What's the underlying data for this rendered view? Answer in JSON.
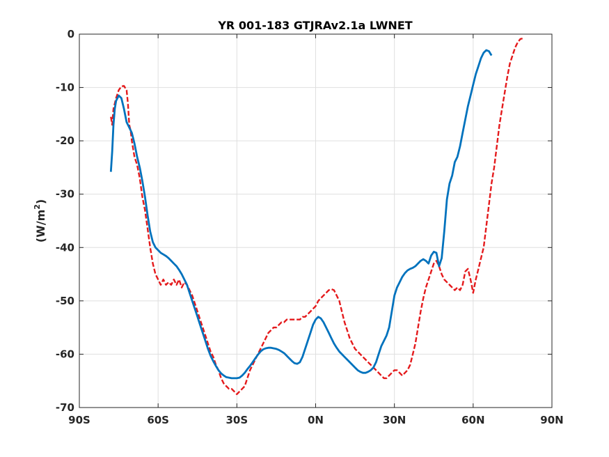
{
  "chart_data": {
    "type": "line",
    "title": "YR 001-183 GTJRAv2.1a LWNET",
    "xlabel": "",
    "ylabel": "(W/m",
    "ylabel_superscript": "2",
    "ylabel_close": ")",
    "xlim": [
      -90,
      90
    ],
    "ylim": [
      -70,
      0
    ],
    "grid": true,
    "legend": "none",
    "x_ticks": [
      {
        "value": -90,
        "label": "90S"
      },
      {
        "value": -60,
        "label": "60S"
      },
      {
        "value": -30,
        "label": "30S"
      },
      {
        "value": 0,
        "label": "0N"
      },
      {
        "value": 30,
        "label": "30N"
      },
      {
        "value": 60,
        "label": "60N"
      },
      {
        "value": 90,
        "label": "90N"
      }
    ],
    "y_ticks": [
      {
        "value": 0,
        "label": "0"
      },
      {
        "value": -10,
        "label": "-10"
      },
      {
        "value": -20,
        "label": "-20"
      },
      {
        "value": -30,
        "label": "-30"
      },
      {
        "value": -40,
        "label": "-40"
      },
      {
        "value": -50,
        "label": "-50"
      },
      {
        "value": -60,
        "label": "-60"
      },
      {
        "value": -70,
        "label": "-70"
      }
    ],
    "series": [
      {
        "color": "#e41a1c",
        "style": "dashed",
        "points": [
          [
            -78,
            -15.5
          ],
          [
            -77.5,
            -17
          ],
          [
            -77,
            -14
          ],
          [
            -76,
            -12
          ],
          [
            -75,
            -10.5
          ],
          [
            -74,
            -9.8
          ],
          [
            -73,
            -9.7
          ],
          [
            -72,
            -10.5
          ],
          [
            -71.5,
            -13
          ],
          [
            -71,
            -17
          ],
          [
            -70.5,
            -18
          ],
          [
            -70,
            -20
          ],
          [
            -69,
            -23
          ],
          [
            -68,
            -24.5
          ],
          [
            -67,
            -27
          ],
          [
            -66,
            -30.5
          ],
          [
            -65,
            -33
          ],
          [
            -64,
            -36.5
          ],
          [
            -63,
            -40
          ],
          [
            -62,
            -43
          ],
          [
            -61,
            -45
          ],
          [
            -60,
            -46
          ],
          [
            -59,
            -47
          ],
          [
            -58,
            -46
          ],
          [
            -57,
            -47
          ],
          [
            -56,
            -46.5
          ],
          [
            -55,
            -47
          ],
          [
            -54,
            -46
          ],
          [
            -53,
            -47
          ],
          [
            -52,
            -46
          ],
          [
            -51,
            -47.5
          ],
          [
            -50,
            -46.5
          ],
          [
            -49,
            -47
          ],
          [
            -48,
            -48
          ],
          [
            -47,
            -49
          ],
          [
            -46,
            -50.5
          ],
          [
            -45,
            -52
          ],
          [
            -44,
            -53.5
          ],
          [
            -43,
            -55
          ],
          [
            -42,
            -56.5
          ],
          [
            -41,
            -58
          ],
          [
            -40,
            -59.5
          ],
          [
            -39,
            -60.5
          ],
          [
            -38,
            -62
          ],
          [
            -37,
            -63
          ],
          [
            -36,
            -64.5
          ],
          [
            -35,
            -65.5
          ],
          [
            -34,
            -66
          ],
          [
            -33,
            -66.5
          ],
          [
            -32,
            -66.5
          ],
          [
            -31,
            -67
          ],
          [
            -30,
            -67.5
          ],
          [
            -29,
            -67
          ],
          [
            -28,
            -66.5
          ],
          [
            -27,
            -66
          ],
          [
            -26,
            -64.5
          ],
          [
            -25,
            -63
          ],
          [
            -24,
            -62
          ],
          [
            -23,
            -61
          ],
          [
            -22,
            -60
          ],
          [
            -21,
            -59
          ],
          [
            -20,
            -58
          ],
          [
            -19,
            -57
          ],
          [
            -18,
            -56
          ],
          [
            -17,
            -55.5
          ],
          [
            -16,
            -55
          ],
          [
            -15,
            -55
          ],
          [
            -14,
            -54.5
          ],
          [
            -13,
            -54
          ],
          [
            -12,
            -54
          ],
          [
            -11,
            -53.5
          ],
          [
            -10,
            -53.5
          ],
          [
            -9,
            -53.5
          ],
          [
            -8,
            -53.5
          ],
          [
            -7,
            -53.5
          ],
          [
            -6,
            -53.5
          ],
          [
            -5,
            -53
          ],
          [
            -4,
            -53
          ],
          [
            -3,
            -52.5
          ],
          [
            -2,
            -52
          ],
          [
            -1,
            -51.5
          ],
          [
            0,
            -51
          ],
          [
            1,
            -50
          ],
          [
            2,
            -49.5
          ],
          [
            3,
            -49
          ],
          [
            4,
            -48.5
          ],
          [
            5,
            -48
          ],
          [
            6,
            -47.8
          ],
          [
            7,
            -48
          ],
          [
            8,
            -49
          ],
          [
            9,
            -50
          ],
          [
            10,
            -52
          ],
          [
            11,
            -54
          ],
          [
            12,
            -55.5
          ],
          [
            13,
            -57
          ],
          [
            14,
            -58
          ],
          [
            15,
            -59
          ],
          [
            16,
            -59.5
          ],
          [
            17,
            -60
          ],
          [
            18,
            -60.5
          ],
          [
            19,
            -61
          ],
          [
            20,
            -61.5
          ],
          [
            21,
            -62
          ],
          [
            22,
            -62.5
          ],
          [
            23,
            -63
          ],
          [
            24,
            -63.5
          ],
          [
            25,
            -64
          ],
          [
            26,
            -64.5
          ],
          [
            27,
            -64.5
          ],
          [
            28,
            -64
          ],
          [
            29,
            -63.5
          ],
          [
            30,
            -63
          ],
          [
            31,
            -63
          ],
          [
            32,
            -63.5
          ],
          [
            33,
            -64
          ],
          [
            34,
            -63.5
          ],
          [
            35,
            -63
          ],
          [
            36,
            -62
          ],
          [
            37,
            -60
          ],
          [
            38,
            -58
          ],
          [
            39,
            -55
          ],
          [
            40,
            -52
          ],
          [
            41,
            -49.5
          ],
          [
            42,
            -47.5
          ],
          [
            43,
            -46
          ],
          [
            44,
            -44.5
          ],
          [
            45,
            -43
          ],
          [
            46,
            -42.5
          ],
          [
            47,
            -43.5
          ],
          [
            48,
            -45
          ],
          [
            49,
            -46
          ],
          [
            50,
            -46.5
          ],
          [
            51,
            -47
          ],
          [
            52,
            -47.5
          ],
          [
            53,
            -48
          ],
          [
            54,
            -47.5
          ],
          [
            55,
            -48
          ],
          [
            56,
            -47
          ],
          [
            57,
            -44.5
          ],
          [
            58,
            -44
          ],
          [
            59,
            -46
          ],
          [
            60,
            -48.5
          ],
          [
            61,
            -46
          ],
          [
            62,
            -44
          ],
          [
            63,
            -42
          ],
          [
            64,
            -40
          ],
          [
            65,
            -36
          ],
          [
            66,
            -32
          ],
          [
            67,
            -28
          ],
          [
            68,
            -25
          ],
          [
            69,
            -21
          ],
          [
            70,
            -17
          ],
          [
            71,
            -14
          ],
          [
            72,
            -11
          ],
          [
            73,
            -8
          ],
          [
            74,
            -5.5
          ],
          [
            75,
            -4
          ],
          [
            76,
            -2.5
          ],
          [
            77,
            -1.5
          ],
          [
            78,
            -0.9
          ],
          [
            79,
            -0.8
          ]
        ]
      },
      {
        "color": "#0072bd",
        "style": "solid",
        "points": [
          [
            -78,
            -25.8
          ],
          [
            -77.5,
            -22
          ],
          [
            -77,
            -17
          ],
          [
            -76.5,
            -14
          ],
          [
            -76,
            -12.5
          ],
          [
            -75,
            -11.5
          ],
          [
            -74,
            -12
          ],
          [
            -73,
            -14
          ],
          [
            -72,
            -16.5
          ],
          [
            -71,
            -17.5
          ],
          [
            -70,
            -18.5
          ],
          [
            -69,
            -20.5
          ],
          [
            -68,
            -23
          ],
          [
            -67,
            -25
          ],
          [
            -66,
            -27.5
          ],
          [
            -65,
            -30.5
          ],
          [
            -64,
            -34
          ],
          [
            -63,
            -37
          ],
          [
            -62,
            -39
          ],
          [
            -61,
            -40
          ],
          [
            -60,
            -40.5
          ],
          [
            -59,
            -41
          ],
          [
            -58,
            -41.3
          ],
          [
            -57,
            -41.6
          ],
          [
            -56,
            -42
          ],
          [
            -55,
            -42.5
          ],
          [
            -54,
            -43
          ],
          [
            -53,
            -43.5
          ],
          [
            -52,
            -44.2
          ],
          [
            -51,
            -45
          ],
          [
            -50,
            -46
          ],
          [
            -49,
            -47
          ],
          [
            -48,
            -48.5
          ],
          [
            -47,
            -50
          ],
          [
            -46,
            -51.5
          ],
          [
            -45,
            -53
          ],
          [
            -44,
            -54.5
          ],
          [
            -43,
            -56
          ],
          [
            -42,
            -57.5
          ],
          [
            -41,
            -59
          ],
          [
            -40,
            -60.3
          ],
          [
            -39,
            -61.3
          ],
          [
            -38,
            -62.2
          ],
          [
            -37,
            -63
          ],
          [
            -36,
            -63.6
          ],
          [
            -35,
            -64
          ],
          [
            -34,
            -64.3
          ],
          [
            -33,
            -64.4
          ],
          [
            -32,
            -64.5
          ],
          [
            -31,
            -64.5
          ],
          [
            -30,
            -64.5
          ],
          [
            -29,
            -64.4
          ],
          [
            -28,
            -64
          ],
          [
            -27,
            -63.5
          ],
          [
            -26,
            -62.8
          ],
          [
            -25,
            -62.2
          ],
          [
            -24,
            -61.5
          ],
          [
            -23,
            -60.8
          ],
          [
            -22,
            -60.1
          ],
          [
            -21,
            -59.5
          ],
          [
            -20,
            -59.1
          ],
          [
            -19,
            -58.9
          ],
          [
            -18,
            -58.8
          ],
          [
            -17,
            -58.8
          ],
          [
            -16,
            -58.9
          ],
          [
            -15,
            -59
          ],
          [
            -14,
            -59.2
          ],
          [
            -13,
            -59.5
          ],
          [
            -12,
            -59.8
          ],
          [
            -11,
            -60.3
          ],
          [
            -10,
            -60.8
          ],
          [
            -9,
            -61.3
          ],
          [
            -8,
            -61.7
          ],
          [
            -7,
            -61.8
          ],
          [
            -6,
            -61.5
          ],
          [
            -5,
            -60.5
          ],
          [
            -4,
            -59
          ],
          [
            -3,
            -57.5
          ],
          [
            -2,
            -56
          ],
          [
            -1,
            -54.5
          ],
          [
            0,
            -53.5
          ],
          [
            1,
            -53
          ],
          [
            2,
            -53.3
          ],
          [
            3,
            -54
          ],
          [
            4,
            -55
          ],
          [
            5,
            -56
          ],
          [
            6,
            -57
          ],
          [
            7,
            -58
          ],
          [
            8,
            -58.8
          ],
          [
            9,
            -59.5
          ],
          [
            10,
            -60
          ],
          [
            11,
            -60.5
          ],
          [
            12,
            -61
          ],
          [
            13,
            -61.5
          ],
          [
            14,
            -62
          ],
          [
            15,
            -62.5
          ],
          [
            16,
            -63
          ],
          [
            17,
            -63.3
          ],
          [
            18,
            -63.5
          ],
          [
            19,
            -63.5
          ],
          [
            20,
            -63.3
          ],
          [
            21,
            -63
          ],
          [
            22,
            -62.5
          ],
          [
            23,
            -61.5
          ],
          [
            24,
            -60
          ],
          [
            25,
            -58.5
          ],
          [
            26,
            -57.5
          ],
          [
            27,
            -56.5
          ],
          [
            28,
            -55
          ],
          [
            29,
            -52
          ],
          [
            30,
            -49
          ],
          [
            31,
            -47.5
          ],
          [
            32,
            -46.5
          ],
          [
            33,
            -45.5
          ],
          [
            34,
            -44.8
          ],
          [
            35,
            -44.3
          ],
          [
            36,
            -44
          ],
          [
            37,
            -43.8
          ],
          [
            38,
            -43.5
          ],
          [
            39,
            -43
          ],
          [
            40,
            -42.5
          ],
          [
            41,
            -42.2
          ],
          [
            42,
            -42.5
          ],
          [
            43,
            -43
          ],
          [
            44,
            -41.5
          ],
          [
            45,
            -40.8
          ],
          [
            46,
            -41
          ],
          [
            47,
            -43.5
          ],
          [
            48,
            -42
          ],
          [
            49,
            -37
          ],
          [
            50,
            -31
          ],
          [
            51,
            -28
          ],
          [
            52,
            -26.5
          ],
          [
            53,
            -24
          ],
          [
            54,
            -23
          ],
          [
            55,
            -21
          ],
          [
            56,
            -18.5
          ],
          [
            57,
            -16
          ],
          [
            58,
            -13.5
          ],
          [
            59,
            -11.5
          ],
          [
            60,
            -9.5
          ],
          [
            61,
            -7.5
          ],
          [
            62,
            -6
          ],
          [
            63,
            -4.5
          ],
          [
            64,
            -3.5
          ],
          [
            65,
            -3
          ],
          [
            66,
            -3.2
          ],
          [
            67,
            -4
          ]
        ]
      }
    ]
  }
}
